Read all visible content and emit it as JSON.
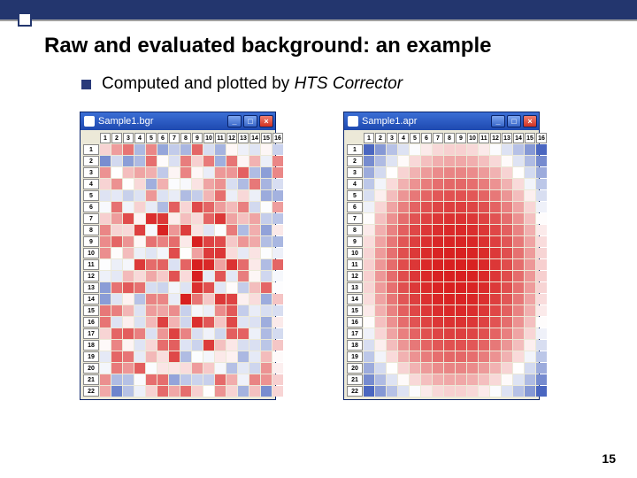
{
  "header": {
    "title": "Raw and evaluated background: an example",
    "subtitle_prefix": "Computed and plotted by ",
    "subtitle_ital": "HTS Corrector"
  },
  "page_number": "15",
  "plate": {
    "cols": 16,
    "rows": 22,
    "col_labels": [
      "1",
      "2",
      "3",
      "4",
      "5",
      "6",
      "7",
      "8",
      "9",
      "10",
      "11",
      "12",
      "13",
      "14",
      "15",
      "16"
    ],
    "row_labels": [
      "1",
      "2",
      "3",
      "4",
      "5",
      "6",
      "7",
      "8",
      "9",
      "10",
      "11",
      "12",
      "13",
      "14",
      "15",
      "16",
      "17",
      "18",
      "19",
      "20",
      "21",
      "22"
    ]
  },
  "windows": {
    "left": {
      "title": "Sample1.bgr"
    },
    "right": {
      "title": "Sample1.apr"
    }
  },
  "heatmap": {
    "left_seed": 73,
    "right_smooth": true,
    "color_neg": "#4a66c0",
    "color_mid": "#ffffff",
    "color_pos": "#d82020"
  }
}
